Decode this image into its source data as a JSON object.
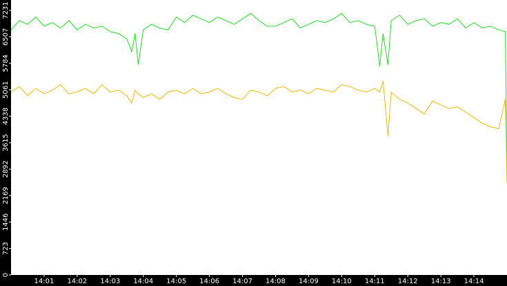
{
  "chart_data": {
    "type": "line",
    "x": [
      0,
      0.25,
      0.5,
      0.75,
      1.0,
      1.25,
      1.5,
      1.75,
      2.0,
      2.25,
      2.5,
      2.75,
      3.0,
      3.25,
      3.5,
      3.65,
      3.75,
      3.85,
      4.0,
      4.25,
      4.5,
      4.75,
      5.0,
      5.25,
      5.5,
      5.75,
      6.0,
      6.25,
      6.5,
      6.75,
      7.0,
      7.25,
      7.5,
      7.75,
      8.0,
      8.25,
      8.5,
      8.75,
      9.0,
      9.25,
      9.5,
      9.75,
      10.0,
      10.25,
      10.5,
      10.75,
      11.0,
      11.15,
      11.25,
      11.4,
      11.5,
      11.75,
      12.0,
      12.25,
      12.5,
      12.75,
      13.0,
      13.25,
      13.5,
      13.75,
      14.0,
      14.25,
      14.5,
      14.75,
      14.95,
      15.0
    ],
    "series": [
      {
        "color": "#22dd22",
        "values": [
          6700,
          6950,
          6850,
          7050,
          6800,
          6900,
          6750,
          6950,
          6700,
          6850,
          6750,
          6800,
          6650,
          6600,
          6450,
          6100,
          6600,
          5750,
          6700,
          6850,
          6750,
          6700,
          7050,
          6900,
          7100,
          7000,
          6900,
          7050,
          6950,
          6850,
          7000,
          7150,
          6950,
          6800,
          6800,
          6900,
          7000,
          6750,
          6850,
          6950,
          6900,
          7000,
          7150,
          6900,
          6950,
          6850,
          6800,
          5700,
          6600,
          5750,
          6950,
          7100,
          6850,
          6950,
          7000,
          6800,
          6900,
          6850,
          7000,
          6750,
          6900,
          6750,
          6800,
          6700,
          6650,
          2600
        ]
      },
      {
        "color": "#f0b800",
        "values": [
          5000,
          5150,
          4900,
          5100,
          4950,
          5050,
          5200,
          4950,
          5000,
          5100,
          4950,
          5200,
          5000,
          5050,
          4900,
          4700,
          5050,
          4950,
          4850,
          4950,
          4800,
          5000,
          5050,
          4950,
          5100,
          4950,
          5000,
          5100,
          4950,
          4850,
          4800,
          5050,
          5000,
          4900,
          5100,
          5150,
          5000,
          5050,
          4950,
          5100,
          5050,
          5000,
          5200,
          5150,
          5050,
          5000,
          5100,
          5000,
          5300,
          3800,
          5000,
          4800,
          4700,
          4550,
          4400,
          4750,
          4650,
          4550,
          4600,
          4450,
          4300,
          4150,
          4050,
          4000,
          4800,
          2500
        ]
      }
    ],
    "xlim": [
      0,
      15
    ],
    "xticks": [
      {
        "value": 1,
        "label": "14:01"
      },
      {
        "value": 2,
        "label": "14:02"
      },
      {
        "value": 3,
        "label": "14:03"
      },
      {
        "value": 4,
        "label": "14:04"
      },
      {
        "value": 5,
        "label": "14:05"
      },
      {
        "value": 6,
        "label": "14:06"
      },
      {
        "value": 7,
        "label": "14:07"
      },
      {
        "value": 8,
        "label": "14:08"
      },
      {
        "value": 9,
        "label": "14:09"
      },
      {
        "value": 10,
        "label": "14:10"
      },
      {
        "value": 11,
        "label": "14:11"
      },
      {
        "value": 12,
        "label": "14:12"
      },
      {
        "value": 13,
        "label": "14:13"
      },
      {
        "value": 14,
        "label": "14:14"
      }
    ],
    "ylim": [
      0,
      7515
    ],
    "yticks": [
      0,
      723,
      1446,
      2169,
      2892,
      3615,
      4338,
      5061,
      5784,
      6507,
      7231
    ]
  }
}
